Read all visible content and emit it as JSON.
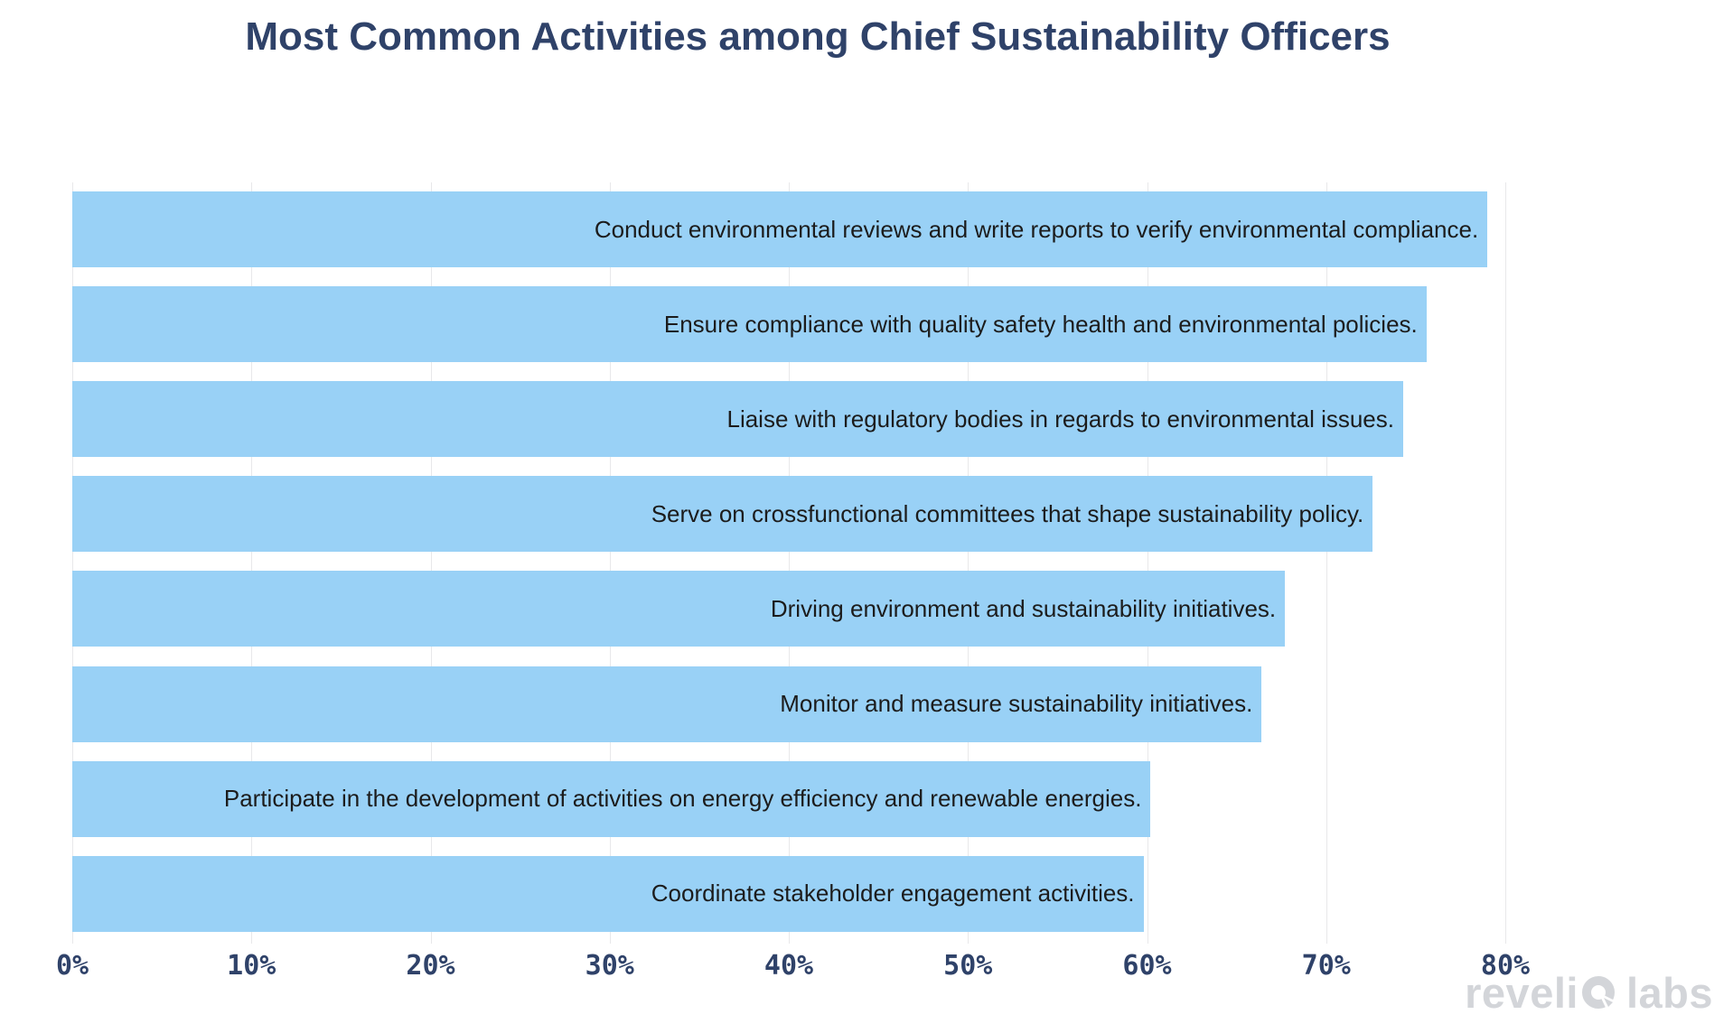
{
  "chart_data": {
    "type": "bar",
    "orientation": "horizontal",
    "title": "Most Common Activities among Chief Sustainability Officers",
    "categories": [
      "Conduct environmental reviews and write reports to verify environmental compliance.",
      "Ensure compliance with quality safety health and environmental policies.",
      "Liaise with regulatory bodies in regards to environmental issues.",
      "Serve on crossfunctional committees that shape sustainability policy.",
      "Driving environment and sustainability initiatives.",
      "Monitor and measure sustainability initiatives.",
      "Participate in the development of activities on energy efficiency and renewable energies.",
      "Coordinate stakeholder engagement activities."
    ],
    "values": [
      79.0,
      75.6,
      74.3,
      72.6,
      67.7,
      66.4,
      60.2,
      59.8
    ],
    "unit": "%",
    "xlabel": "",
    "ylabel": "",
    "xlim": [
      0,
      85
    ],
    "x_ticks": [
      0,
      10,
      20,
      30,
      40,
      50,
      60,
      70,
      80
    ],
    "x_tick_labels": [
      "0%",
      "10%",
      "20%",
      "30%",
      "40%",
      "50%",
      "60%",
      "70%",
      "80%"
    ],
    "grid": "vertical-only",
    "legend": "none",
    "bar_label_position": "inside-right",
    "bar_color": "#99d1f6",
    "bar_label_color": "#1c1c1c",
    "title_color": "#2f4269",
    "tick_label_color": "#2f4269",
    "gridline_color": "#e8e8ea"
  },
  "watermark": {
    "text": "revelio labs",
    "text_before_icon": "reveli",
    "icon": "revelio-o-icon",
    "text_after_icon": "labs",
    "color": "#d3d5d9"
  }
}
